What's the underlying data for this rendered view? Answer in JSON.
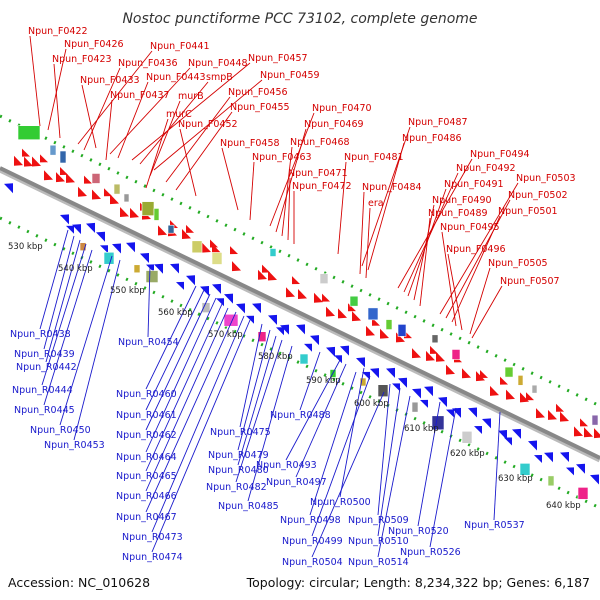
{
  "title": "Nostoc punctiforme PCC 73102, complete genome",
  "accession_text": "Accession: NC_010628",
  "summary_text": "Topology: circular; Length: 8,234,322 bp; Genes: 6,187",
  "colors": {
    "forward_gene": "#ee1111",
    "reverse_gene": "#1515ee",
    "forward_label": "#d40000",
    "reverse_label": "#1a1acc",
    "backbone": "#888888",
    "dots": "#22aa22"
  },
  "kbp_ticks": [
    "530 kbp",
    "540 kbp",
    "550 kbp",
    "560 kbp",
    "570 kbp",
    "580 kbp",
    "590 kbp",
    "600 kbp",
    "610 kbp",
    "620 kbp",
    "630 kbp",
    "640 kbp"
  ],
  "forward_labels": [
    "Npun_F0422",
    "Npun_F0426",
    "Npun_F0423",
    "Npun_F0441",
    "Npun_F0436",
    "Npun_F0448",
    "Npun_F0457",
    "Npun_F0433",
    "Npun_F0443",
    "smpB",
    "Npun_F0459",
    "Npun_F0437",
    "murB",
    "Npun_F0456",
    "murC",
    "Npun_F0455",
    "Npun_F0452",
    "Npun_F0470",
    "Npun_F0469",
    "Npun_F0458",
    "Npun_F0468",
    "Npun_F0463",
    "Npun_F0481",
    "Npun_F0471",
    "Npun_F0472",
    "Npun_F0487",
    "Npun_F0486",
    "Npun_F0484",
    "era",
    "Npun_F0494",
    "Npun_F0492",
    "Npun_F0491",
    "Npun_F0490",
    "Npun_F0489",
    "Npun_F0503",
    "Npun_F0502",
    "Npun_F0501",
    "Npun_F0495",
    "Npun_F0496",
    "Npun_F0505",
    "Npun_F0507"
  ],
  "reverse_labels": [
    "Npun_R0438",
    "Npun_R0439",
    "Npun_R0442",
    "Npun_R0444",
    "Npun_R0445",
    "Npun_R0450",
    "Npun_R0453",
    "Npun_R0454",
    "Npun_R0460",
    "Npun_R0461",
    "Npun_R0462",
    "Npun_R0464",
    "Npun_R0465",
    "Npun_R0466",
    "Npun_R0467",
    "Npun_R0473",
    "Npun_R0474",
    "Npun_R0475",
    "Npun_R0479",
    "Npun_R0480",
    "Npun_R0482",
    "Npun_R0485",
    "Npun_R0488",
    "Npun_R0493",
    "Npun_R0497",
    "Npun_R0500",
    "Npun_R0498",
    "Npun_R0499",
    "Npun_R0509",
    "Npun_R0510",
    "Npun_R0504",
    "Npun_R0514",
    "Npun_R0520",
    "Npun_R0526",
    "Npun_R0537"
  ]
}
